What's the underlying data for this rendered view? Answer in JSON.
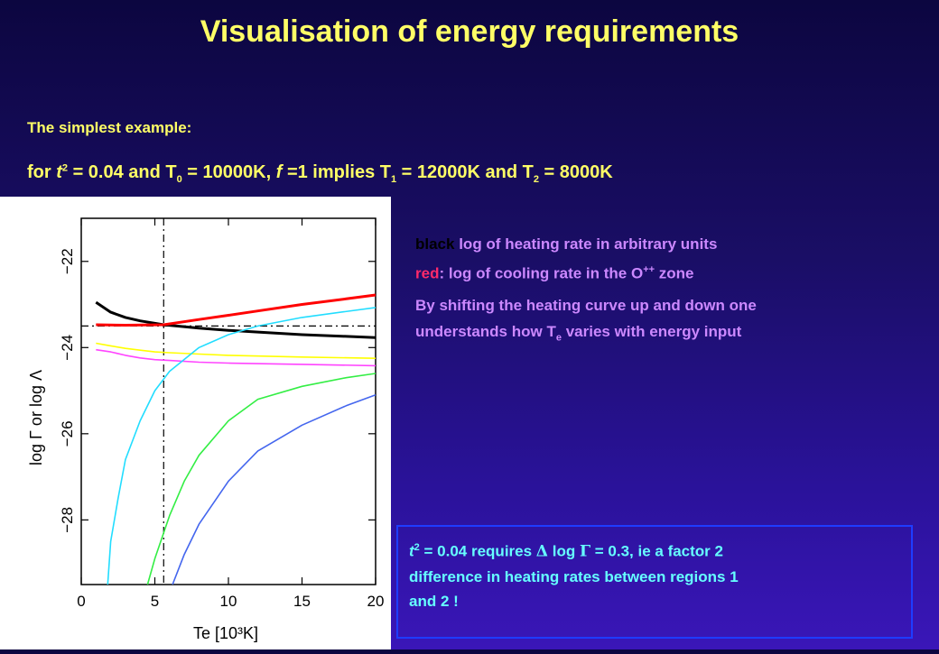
{
  "title": "Visualisation of energy requirements",
  "subtitle": "The simplest example:",
  "formula": {
    "pre": "for ",
    "t": "t",
    "t_exp": "2",
    "p1": " = 0.04 and T",
    "T0_sub": "0",
    "p2": " = 10000K, ",
    "f": "f",
    "p3": " =1  implies T",
    "T1_sub": "1",
    "p4": " = 12000K and T",
    "T2_sub": "2",
    "p5": " = 8000K"
  },
  "legend": {
    "black_word": "black",
    "black_text": " log of heating rate in arbitrary units",
    "red_word": "red",
    "red_text": ": log of cooling rate in the O",
    "red_sup": "++",
    "red_tail": " zone",
    "shift_line1": "By shifting the heating curve up and down one",
    "shift_line2a": "understands how T",
    "shift_sub": "e",
    "shift_line2b": " varies  with energy input"
  },
  "callout": {
    "t": "t",
    "t_exp": "2",
    "a": " = 0.04 requires ",
    "delta": "Δ",
    "b": " log ",
    "gamma": "Γ",
    "c": " = 0.3, ie a factor 2",
    "line2": "difference in heating rates between regions 1",
    "line3": "and 2 !"
  },
  "colors": {
    "title": "#ffff66",
    "legend_text": "#cc88ff",
    "red_label": "#ff2a6a",
    "callout_text": "#66ffff",
    "callout_border": "#1e3cff"
  },
  "chart_data": {
    "type": "line",
    "xlabel": "Te [10³K]",
    "ylabel": "log Γ or log Λ",
    "xlim": [
      0,
      20
    ],
    "ylim": [
      -29.5,
      -21
    ],
    "xticks": [
      0,
      5,
      10,
      15,
      20
    ],
    "yticks": [
      -22,
      -24,
      -26,
      -28
    ],
    "reference_x": 5.6,
    "reference_y": -23.5,
    "series": [
      {
        "color": "#000000",
        "x": [
          1,
          2,
          3,
          4,
          5.6,
          8,
          10,
          12,
          15,
          18,
          20
        ],
        "y": [
          -22.95,
          -23.18,
          -23.3,
          -23.38,
          -23.47,
          -23.55,
          -23.6,
          -23.64,
          -23.7,
          -23.74,
          -23.77
        ]
      },
      {
        "color": "#ff0000",
        "x": [
          1,
          3,
          5.6,
          8,
          10,
          12,
          15,
          18,
          20
        ],
        "y": [
          -23.47,
          -23.48,
          -23.47,
          -23.35,
          -23.25,
          -23.15,
          -23.0,
          -22.87,
          -22.78
        ]
      },
      {
        "color": "#ffff00",
        "x": [
          1,
          2,
          3,
          4,
          5,
          6,
          8,
          10,
          15,
          20
        ],
        "y": [
          -23.9,
          -23.96,
          -24.02,
          -24.06,
          -24.1,
          -24.12,
          -24.15,
          -24.18,
          -24.22,
          -24.25
        ]
      },
      {
        "color": "#ff44ff",
        "x": [
          1,
          2,
          3,
          4,
          5,
          6,
          8,
          10,
          15,
          20
        ],
        "y": [
          -24.05,
          -24.1,
          -24.18,
          -24.24,
          -24.28,
          -24.3,
          -24.34,
          -24.36,
          -24.39,
          -24.42
        ]
      },
      {
        "color": "#22ddff",
        "x": [
          1.8,
          2,
          2.5,
          3,
          4,
          5,
          6,
          8,
          10,
          12,
          15,
          20
        ],
        "y": [
          -29.5,
          -28.5,
          -27.5,
          -26.6,
          -25.7,
          -25.0,
          -24.55,
          -24.0,
          -23.7,
          -23.5,
          -23.3,
          -23.07
        ]
      },
      {
        "color": "#33ee44",
        "x": [
          4.5,
          5,
          6,
          7,
          8,
          10,
          12,
          15,
          18,
          20
        ],
        "y": [
          -29.5,
          -28.9,
          -27.9,
          -27.1,
          -26.5,
          -25.7,
          -25.2,
          -24.9,
          -24.7,
          -24.6
        ]
      },
      {
        "color": "#4466ee",
        "x": [
          6.2,
          7,
          8,
          10,
          12,
          15,
          18,
          20
        ],
        "y": [
          -29.5,
          -28.8,
          -28.1,
          -27.1,
          -26.4,
          -25.8,
          -25.35,
          -25.1
        ]
      }
    ]
  }
}
